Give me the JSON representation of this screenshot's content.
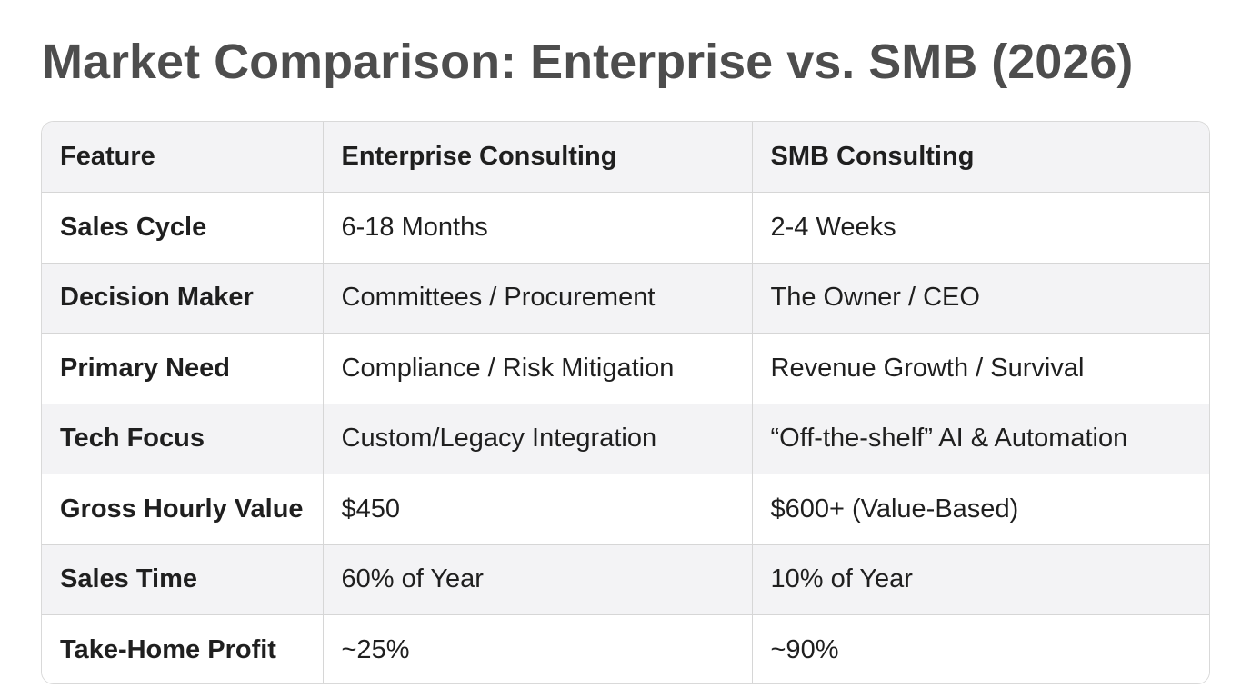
{
  "title": "Market Comparison: Enterprise vs. SMB (2026)",
  "table": {
    "headers": [
      "Feature",
      "Enterprise Consulting",
      "SMB Consulting"
    ],
    "rows": [
      [
        "Sales Cycle",
        "6-18 Months",
        "2-4 Weeks"
      ],
      [
        "Decision Maker",
        "Committees / Procurement",
        "The Owner / CEO"
      ],
      [
        "Primary Need",
        "Compliance / Risk Mitigation",
        "Revenue Growth / Survival"
      ],
      [
        "Tech Focus",
        "Custom/Legacy Integration",
        "“Off-the-shelf” AI & Automation"
      ],
      [
        "Gross Hourly Value",
        "$450",
        "$600+ (Value-Based)"
      ],
      [
        "Sales Time",
        "60% of Year",
        "10% of Year"
      ],
      [
        "Take-Home Profit",
        "~25%",
        "~90%"
      ]
    ]
  }
}
